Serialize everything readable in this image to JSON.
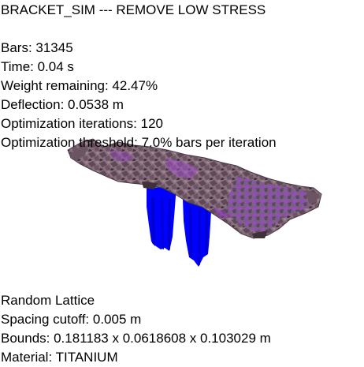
{
  "title": "BRACKET_SIM --- REMOVE LOW STRESS",
  "stats": {
    "bars": "Bars: 31345",
    "time": "Time: 0.04 s",
    "weight": "Weight remaining: 42.47%",
    "deflection": "Deflection: 0.0538 m",
    "iterations": "Optimization iterations: 120",
    "threshold": "Optimization threshold: 7.0% bars per iteration"
  },
  "footer": {
    "lattice": "Random Lattice",
    "spacing": "Spacing cutoff: 0.005 m",
    "bounds": "Bounds: 0.181183 x 0.0618608 x 0.103029 m",
    "material": "Material: TITANIUM"
  },
  "colors": {
    "background": "#ffffff",
    "text": "#000000",
    "lattice_base": "#8a6f7e",
    "lattice_dark": "#4a3a44",
    "lattice_purple": "#a050c8",
    "support": "#0000ff"
  }
}
